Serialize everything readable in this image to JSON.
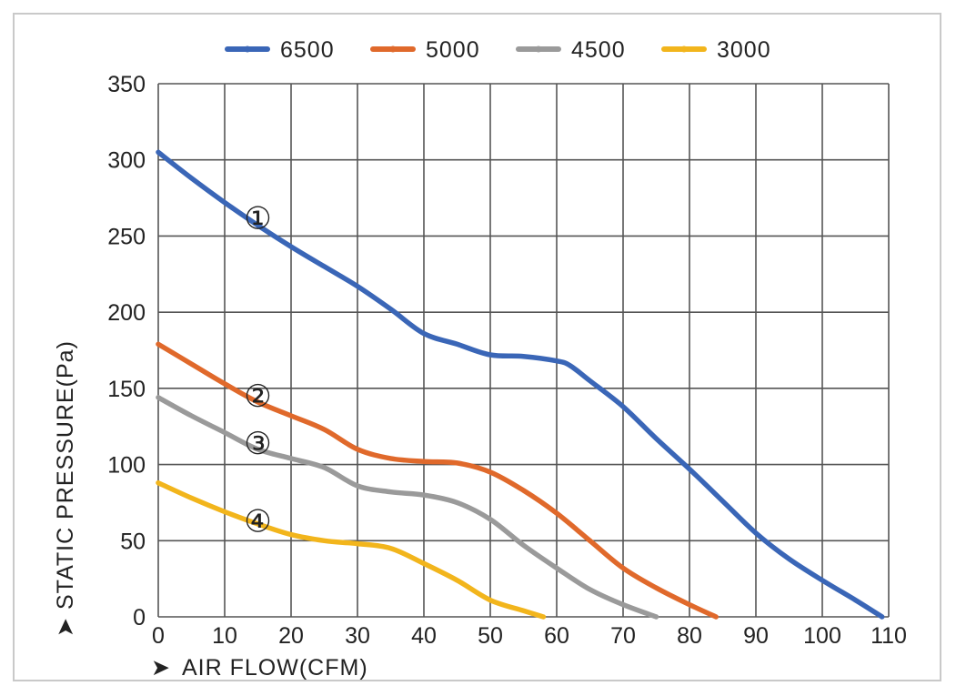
{
  "chart_data": {
    "type": "line",
    "title": "",
    "xlabel": "AIR FLOW(CFM)",
    "ylabel": "STATIC PRESSURE(Pa)",
    "arrow_glyph": "➤",
    "xlim": [
      0,
      110
    ],
    "ylim": [
      0,
      350
    ],
    "x_ticks": [
      0,
      10,
      20,
      30,
      40,
      50,
      60,
      70,
      80,
      90,
      100,
      110
    ],
    "y_ticks": [
      0,
      50,
      100,
      150,
      200,
      250,
      300,
      350
    ],
    "grid": true,
    "legend_position": "top-center",
    "series": [
      {
        "name": "6500",
        "color": "#3a66b7",
        "marker": "①",
        "marker_at": [
          15,
          262
        ],
        "points": [
          [
            0,
            305
          ],
          [
            5,
            288
          ],
          [
            10,
            272
          ],
          [
            15,
            257
          ],
          [
            20,
            243
          ],
          [
            25,
            230
          ],
          [
            30,
            217
          ],
          [
            35,
            202
          ],
          [
            40,
            186
          ],
          [
            45,
            179
          ],
          [
            50,
            172
          ],
          [
            55,
            171
          ],
          [
            60,
            168
          ],
          [
            62,
            165
          ],
          [
            65,
            155
          ],
          [
            70,
            138
          ],
          [
            75,
            117
          ],
          [
            80,
            97
          ],
          [
            85,
            76
          ],
          [
            90,
            55
          ],
          [
            95,
            38
          ],
          [
            100,
            24
          ],
          [
            105,
            11
          ],
          [
            109,
            0
          ]
        ]
      },
      {
        "name": "5000",
        "color": "#e0692b",
        "marker": "②",
        "marker_at": [
          15,
          145
        ],
        "points": [
          [
            0,
            179
          ],
          [
            5,
            166
          ],
          [
            10,
            153
          ],
          [
            15,
            141
          ],
          [
            20,
            132
          ],
          [
            25,
            123
          ],
          [
            30,
            110
          ],
          [
            35,
            104
          ],
          [
            40,
            102
          ],
          [
            45,
            101
          ],
          [
            50,
            95
          ],
          [
            55,
            83
          ],
          [
            60,
            68
          ],
          [
            65,
            50
          ],
          [
            70,
            32
          ],
          [
            75,
            19
          ],
          [
            80,
            8
          ],
          [
            84,
            0
          ]
        ]
      },
      {
        "name": "4500",
        "color": "#9a9a9a",
        "marker": "③",
        "marker_at": [
          15,
          114
        ],
        "points": [
          [
            0,
            144
          ],
          [
            5,
            132
          ],
          [
            10,
            121
          ],
          [
            15,
            110
          ],
          [
            20,
            104
          ],
          [
            25,
            98
          ],
          [
            30,
            86
          ],
          [
            35,
            82
          ],
          [
            40,
            80
          ],
          [
            45,
            75
          ],
          [
            50,
            64
          ],
          [
            55,
            47
          ],
          [
            60,
            32
          ],
          [
            65,
            18
          ],
          [
            70,
            8
          ],
          [
            75,
            0
          ]
        ]
      },
      {
        "name": "3000",
        "color": "#f2b51c",
        "marker": "④",
        "marker_at": [
          15,
          63
        ],
        "points": [
          [
            0,
            88
          ],
          [
            5,
            78
          ],
          [
            10,
            69
          ],
          [
            15,
            61
          ],
          [
            20,
            54
          ],
          [
            25,
            50
          ],
          [
            30,
            48
          ],
          [
            35,
            45
          ],
          [
            40,
            35
          ],
          [
            45,
            24
          ],
          [
            50,
            11
          ],
          [
            55,
            4
          ],
          [
            58,
            0
          ]
        ]
      }
    ]
  }
}
